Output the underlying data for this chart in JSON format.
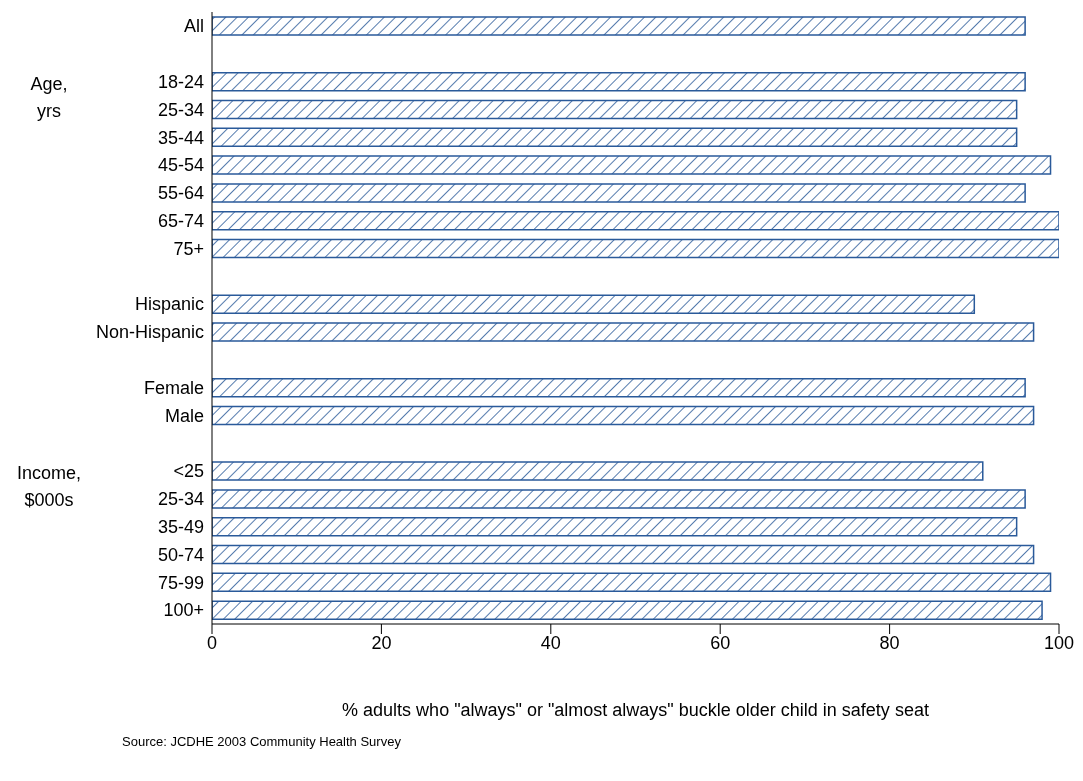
{
  "chart_data": {
    "type": "bar",
    "orientation": "horizontal",
    "categories": [
      "All",
      null,
      "18-24",
      "25-34",
      "35-44",
      "45-54",
      "55-64",
      "65-74",
      "75+",
      null,
      "Hispanic",
      "Non-Hispanic",
      null,
      "Female",
      "Male",
      null,
      "<25",
      "25-34",
      "35-49",
      "50-74",
      "75-99",
      "100+"
    ],
    "values": [
      96,
      null,
      96,
      95,
      95,
      99,
      96,
      100,
      100,
      null,
      90,
      97,
      null,
      96,
      97,
      null,
      91,
      96,
      95,
      97,
      99,
      98
    ],
    "color": "#2a5a9a",
    "xlim": [
      0,
      100
    ],
    "xticks": [
      0,
      20,
      40,
      60,
      80,
      100
    ],
    "xlabel": "% adults who \"always\" or \"almost always\" buckle older child in safety seat",
    "grid": false,
    "legend": false,
    "annotations": [
      "Age, yrs",
      "Income, $000s",
      "Source: JCDHE 2003 Community Health Survey"
    ]
  }
}
